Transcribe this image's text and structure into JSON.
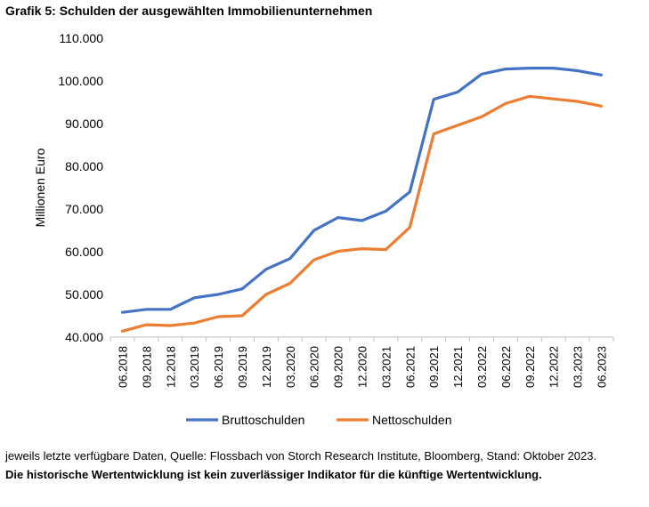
{
  "title": "Grafik 5: Schulden der ausgewählten Immobilienunternehmen",
  "footnote": "jeweils letzte verfügbare Daten, Quelle: Flossbach von Storch Research Institute, Bloomberg, Stand: Oktober 2023.",
  "disclaimer": "Die historische Wertentwicklung ist kein zuverlässiger Indikator für die künftige Wertentwicklung.",
  "chart_data": {
    "type": "line",
    "ylabel": "Millionen Euro",
    "xlabel": "",
    "ylim": [
      40000,
      110000
    ],
    "yticks": [
      40000,
      50000,
      60000,
      70000,
      80000,
      90000,
      100000,
      110000
    ],
    "ytick_labels": [
      "40.000",
      "50.000",
      "60.000",
      "70.000",
      "80.000",
      "90.000",
      "100.000",
      "110.000"
    ],
    "grid": false,
    "legend_position": "bottom",
    "categories": [
      "06.2018",
      "09.2018",
      "12.2018",
      "03.2019",
      "06.2019",
      "09.2019",
      "12.2019",
      "03.2020",
      "06.2020",
      "09.2020",
      "12.2020",
      "03.2021",
      "06.2021",
      "09.2021",
      "12.2021",
      "03.2022",
      "06.2022",
      "09.2022",
      "12.2022",
      "03.2023",
      "06.2023"
    ],
    "series": [
      {
        "name": "Bruttoschulden",
        "color": "#4472C4",
        "values": [
          45800,
          46500,
          46500,
          49200,
          50000,
          51300,
          55900,
          58400,
          65000,
          68000,
          67300,
          69500,
          74000,
          95700,
          97400,
          101600,
          102800,
          103000,
          103000,
          102400,
          101400
        ]
      },
      {
        "name": "Nettoschulden",
        "color": "#ED7D31",
        "values": [
          41400,
          42900,
          42700,
          43300,
          44800,
          45000,
          50000,
          52600,
          58100,
          60100,
          60700,
          60500,
          65700,
          87600,
          89600,
          91600,
          94700,
          96400,
          95800,
          95200,
          94100
        ]
      }
    ]
  }
}
